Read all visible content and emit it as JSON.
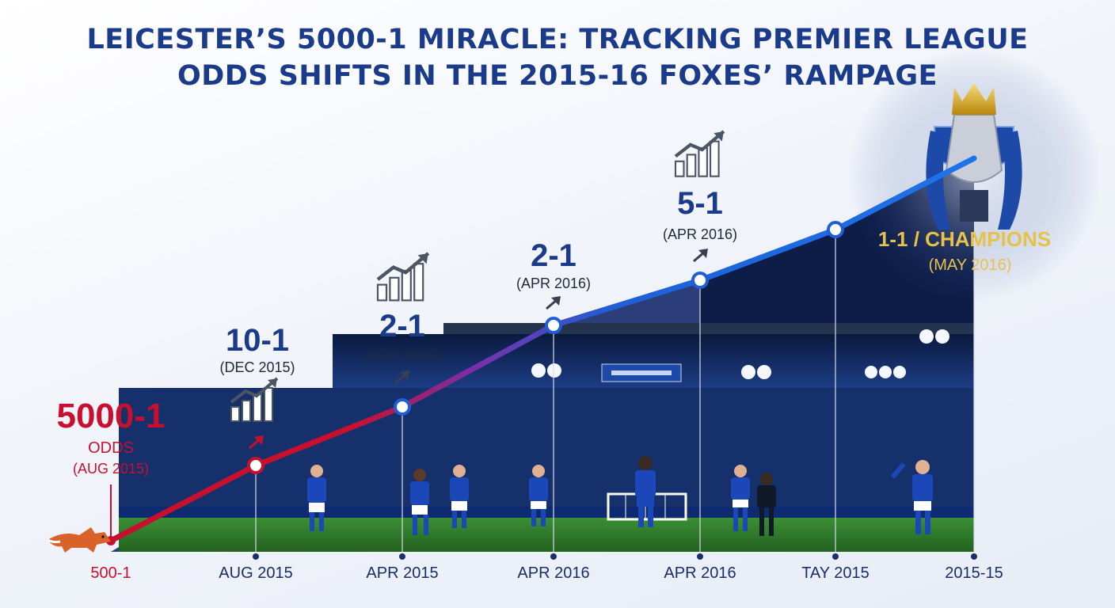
{
  "title_lines": [
    "LEICESTER’S 5000-1 MIRACLE: TRACKING PREMIER LEAGUE",
    "ODDS SHIFTS IN THE 2015-16 FOXES’ RAMPAGE"
  ],
  "colors": {
    "title": "#1a3a8a",
    "start_red": "#c8102e",
    "line_blue": "#1f5fd6",
    "champion_gold": "#e7c24a",
    "pitch_green": "#2f7a2c",
    "stand_blue": "#0f2a5c"
  },
  "icons": [
    "fox-icon",
    "trending-up-icon",
    "premier-league-trophy-icon"
  ],
  "chart_data": {
    "type": "line",
    "x_tick_labels": [
      "500-1",
      "AUG 2015",
      "APR 2015",
      "APR 2016",
      "APR 2016",
      "TAY 2015",
      "2015-15"
    ],
    "y_axis_shown": false,
    "grid": false,
    "series": [
      {
        "points": [
          {
            "label_odds": "5000-1",
            "label_extra": "ODDS",
            "label_date": "(AUG 2015)",
            "tick": "500-1"
          },
          {
            "label_odds": "10-1",
            "label_date": "(DEC 2015)",
            "tick": "AUG 2015"
          },
          {
            "label_odds": "2-1",
            "label_date": "(AEC 2015)",
            "tick": "APR 2015"
          },
          {
            "label_odds": "2-1",
            "label_date": "(APR 2016)",
            "tick": "APR 2016"
          },
          {
            "label_odds": "5-1",
            "label_date": "(APR 2016)",
            "tick": "APR 2016"
          },
          {
            "label_odds": "1-1 / CHAMPIONS",
            "label_date": "(MAY 2016)",
            "tick": "TAY 2015"
          }
        ]
      }
    ],
    "annotations": [
      "1-1 / CHAMPIONS",
      "(MAY 2016)"
    ]
  }
}
